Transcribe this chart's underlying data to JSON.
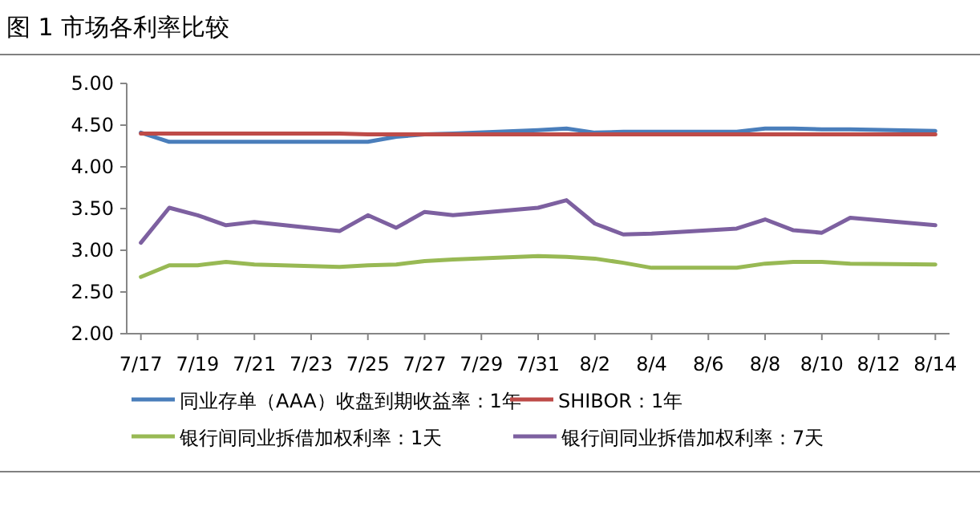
{
  "chart_data": {
    "type": "line",
    "title": "图 1  市场各利率比较",
    "x": [
      "--07-17",
      "--07-18",
      "--07-19",
      "--07-20",
      "--07-21",
      "--07-24",
      "--07-25",
      "--07-26",
      "--07-27",
      "--07-28",
      "--07-31",
      "--08-01",
      "--08-02",
      "--08-03",
      "--08-04",
      "--08-07",
      "--08-08",
      "--08-09",
      "--08-10",
      "--08-11",
      "--08-14"
    ],
    "series": [
      {
        "name": "同业存单（AAA）收盘到期收益率：1年",
        "color": "#4a7ebb",
        "values": [
          4.41,
          4.3,
          4.3,
          4.3,
          4.3,
          4.3,
          4.3,
          4.36,
          4.39,
          4.4,
          4.44,
          4.46,
          4.41,
          4.42,
          4.42,
          4.42,
          4.46,
          4.46,
          4.45,
          4.45,
          4.43
        ]
      },
      {
        "name": "SHIBOR：1年",
        "color": "#be4b48",
        "values": [
          4.4,
          4.4,
          4.4,
          4.4,
          4.4,
          4.4,
          4.39,
          4.39,
          4.39,
          4.39,
          4.39,
          4.39,
          4.39,
          4.39,
          4.39,
          4.39,
          4.39,
          4.39,
          4.39,
          4.39,
          4.39
        ]
      },
      {
        "name": "银行间同业拆借加权利率：1天",
        "color": "#98b954",
        "values": [
          2.68,
          2.82,
          2.82,
          2.86,
          2.83,
          2.8,
          2.82,
          2.83,
          2.87,
          2.89,
          2.93,
          2.92,
          2.9,
          2.85,
          2.79,
          2.79,
          2.84,
          2.86,
          2.86,
          2.84,
          2.83
        ]
      },
      {
        "name": "银行间同业拆借加权利率：7天",
        "color": "#7d60a0",
        "values": [
          3.09,
          3.51,
          3.42,
          3.3,
          3.34,
          3.23,
          3.42,
          3.27,
          3.46,
          3.42,
          3.51,
          3.6,
          3.32,
          3.19,
          3.2,
          3.26,
          3.37,
          3.24,
          3.21,
          3.39,
          3.3
        ]
      }
    ],
    "xlim": [
      "--07-16T12:00",
      "--08-14T12:00"
    ],
    "xticks": [
      {
        "value": "--07-17",
        "label": "7/17"
      },
      {
        "value": "--07-19",
        "label": "7/19"
      },
      {
        "value": "--07-21",
        "label": "7/21"
      },
      {
        "value": "--07-23",
        "label": "7/23"
      },
      {
        "value": "--07-25",
        "label": "7/25"
      },
      {
        "value": "--07-27",
        "label": "7/27"
      },
      {
        "value": "--07-29",
        "label": "7/29"
      },
      {
        "value": "--07-31",
        "label": "7/31"
      },
      {
        "value": "--08-02",
        "label": "8/2"
      },
      {
        "value": "--08-04",
        "label": "8/4"
      },
      {
        "value": "--08-06",
        "label": "8/6"
      },
      {
        "value": "--08-08",
        "label": "8/8"
      },
      {
        "value": "--08-10",
        "label": "8/10"
      },
      {
        "value": "--08-12",
        "label": "8/12"
      },
      {
        "value": "--08-14",
        "label": "8/14"
      }
    ],
    "ylim": [
      2,
      5
    ],
    "yticks": [
      {
        "value": 2,
        "label": "2.00"
      },
      {
        "value": 2.5,
        "label": "2.50"
      },
      {
        "value": 3,
        "label": "3.00"
      },
      {
        "value": 3.5,
        "label": "3.50"
      },
      {
        "value": 4,
        "label": "4.00"
      },
      {
        "value": 4.5,
        "label": "4.50"
      },
      {
        "value": 5,
        "label": "5.00"
      }
    ],
    "grid": false,
    "legend": "bottom",
    "marker": "none",
    "line_style": "solid"
  }
}
